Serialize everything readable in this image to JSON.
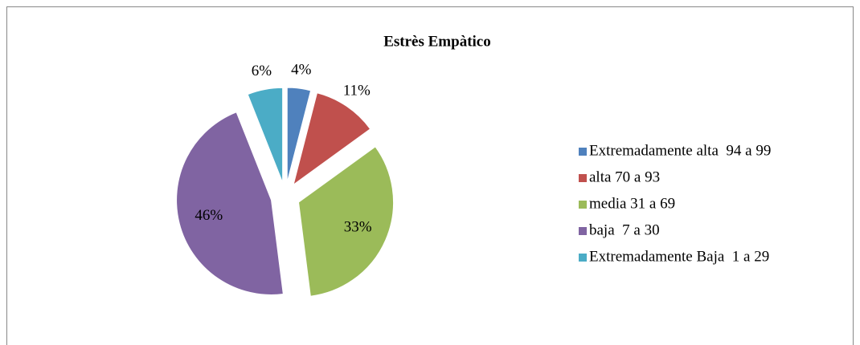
{
  "chart_data": {
    "type": "pie",
    "title": "Estrès Empàtico",
    "categories": [
      "Extremadamente alta  94 a 99",
      "alta 70 a 93",
      "media 31 a 69",
      "baja  7 a 30",
      "Extremadamente Baja  1 a 29"
    ],
    "values": [
      4,
      11,
      33,
      46,
      6
    ],
    "value_labels": [
      "4%",
      "11%",
      "33%",
      "46%",
      "6%"
    ],
    "colors": [
      "#4f81bd",
      "#c0504d",
      "#9bbb59",
      "#8064a2",
      "#4bacc6"
    ],
    "legend": "right"
  }
}
